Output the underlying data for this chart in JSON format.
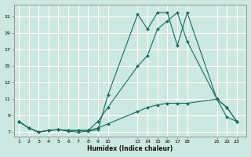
{
  "xlabel": "Humidex (Indice chaleur)",
  "bg_color": "#cce8e0",
  "grid_color": "#ffffff",
  "line_color": "#1a6b5a",
  "x_ticks": [
    1,
    2,
    3,
    4,
    5,
    6,
    7,
    8,
    9,
    10,
    13,
    14,
    15,
    16,
    17,
    18,
    21,
    22,
    23
  ],
  "ylim": [
    6.5,
    22.5
  ],
  "xlim": [
    0.5,
    24.0
  ],
  "yticks": [
    7,
    9,
    11,
    13,
    15,
    17,
    19,
    21
  ],
  "line1_x": [
    1,
    2,
    3,
    4,
    5,
    6,
    7,
    8,
    9,
    10,
    13,
    14,
    15,
    16,
    17,
    18,
    21,
    22,
    23
  ],
  "line1_y": [
    8.3,
    7.5,
    7.0,
    7.2,
    7.3,
    7.1,
    7.0,
    7.1,
    7.3,
    11.5,
    21.3,
    19.5,
    21.5,
    21.5,
    17.5,
    21.5,
    11.0,
    10.0,
    8.3
  ],
  "line2_x": [
    1,
    2,
    3,
    4,
    5,
    6,
    7,
    8,
    9,
    10,
    13,
    14,
    15,
    16,
    17,
    18,
    21,
    22,
    23
  ],
  "line2_y": [
    8.3,
    7.5,
    7.0,
    7.2,
    7.3,
    7.2,
    7.2,
    7.2,
    8.3,
    10.0,
    15.0,
    16.3,
    19.5,
    20.5,
    21.5,
    18.0,
    11.0,
    10.0,
    8.3
  ],
  "line3_x": [
    1,
    2,
    3,
    4,
    5,
    6,
    7,
    8,
    9,
    10,
    13,
    14,
    15,
    16,
    17,
    18,
    21,
    22,
    23
  ],
  "line3_y": [
    8.3,
    7.5,
    7.0,
    7.2,
    7.3,
    7.2,
    7.2,
    7.2,
    7.5,
    8.0,
    9.5,
    10.0,
    10.3,
    10.5,
    10.5,
    10.5,
    11.0,
    8.8,
    8.3
  ]
}
